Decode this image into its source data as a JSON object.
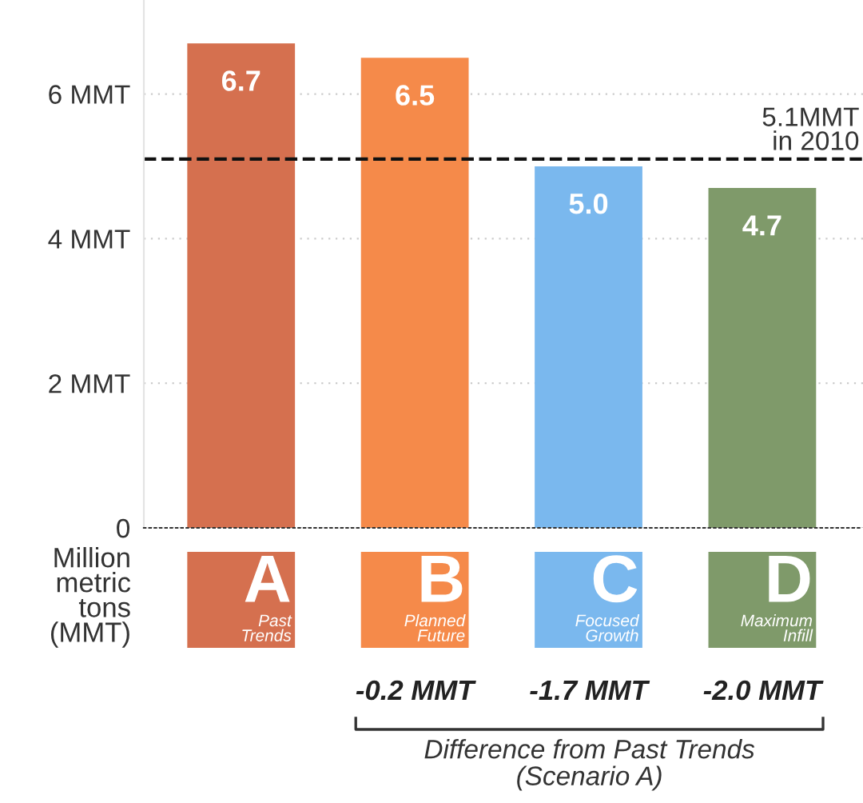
{
  "chart_data": {
    "type": "bar",
    "categories": [
      "A\nPast\nTrends",
      "B\nPlanned\nFuture",
      "C\nFocused\nGrowth",
      "D\nMaximum\nInfill"
    ],
    "values": [
      6.7,
      6.5,
      5.0,
      4.7
    ],
    "colors": [
      "#d5704f",
      "#f58a4a",
      "#7ab8ee",
      "#7f9a6a"
    ],
    "value_labels": [
      "6.7",
      "6.5",
      "5.0",
      "4.7"
    ],
    "ylabel": "Million\nmetric\ntons\n(MMT)",
    "ylim": [
      0,
      7.3
    ],
    "yticks": [
      0,
      {
        "value": 2,
        "label": "2 MMT"
      },
      {
        "value": 4,
        "label": "4 MMT"
      },
      {
        "value": 6,
        "label": "6 MMT"
      }
    ],
    "grid": "y",
    "ref_lines": [
      {
        "axis": "y",
        "value": 5.1,
        "label": "5.1MMT\nin 2010",
        "color": "#111111",
        "line_style": "dashed"
      }
    ],
    "annotations": [
      "-0.2 MMT",
      "-1.7 MMT",
      "-2.0 MMT",
      "Difference from Past Trends\n(Scenario A)"
    ]
  }
}
